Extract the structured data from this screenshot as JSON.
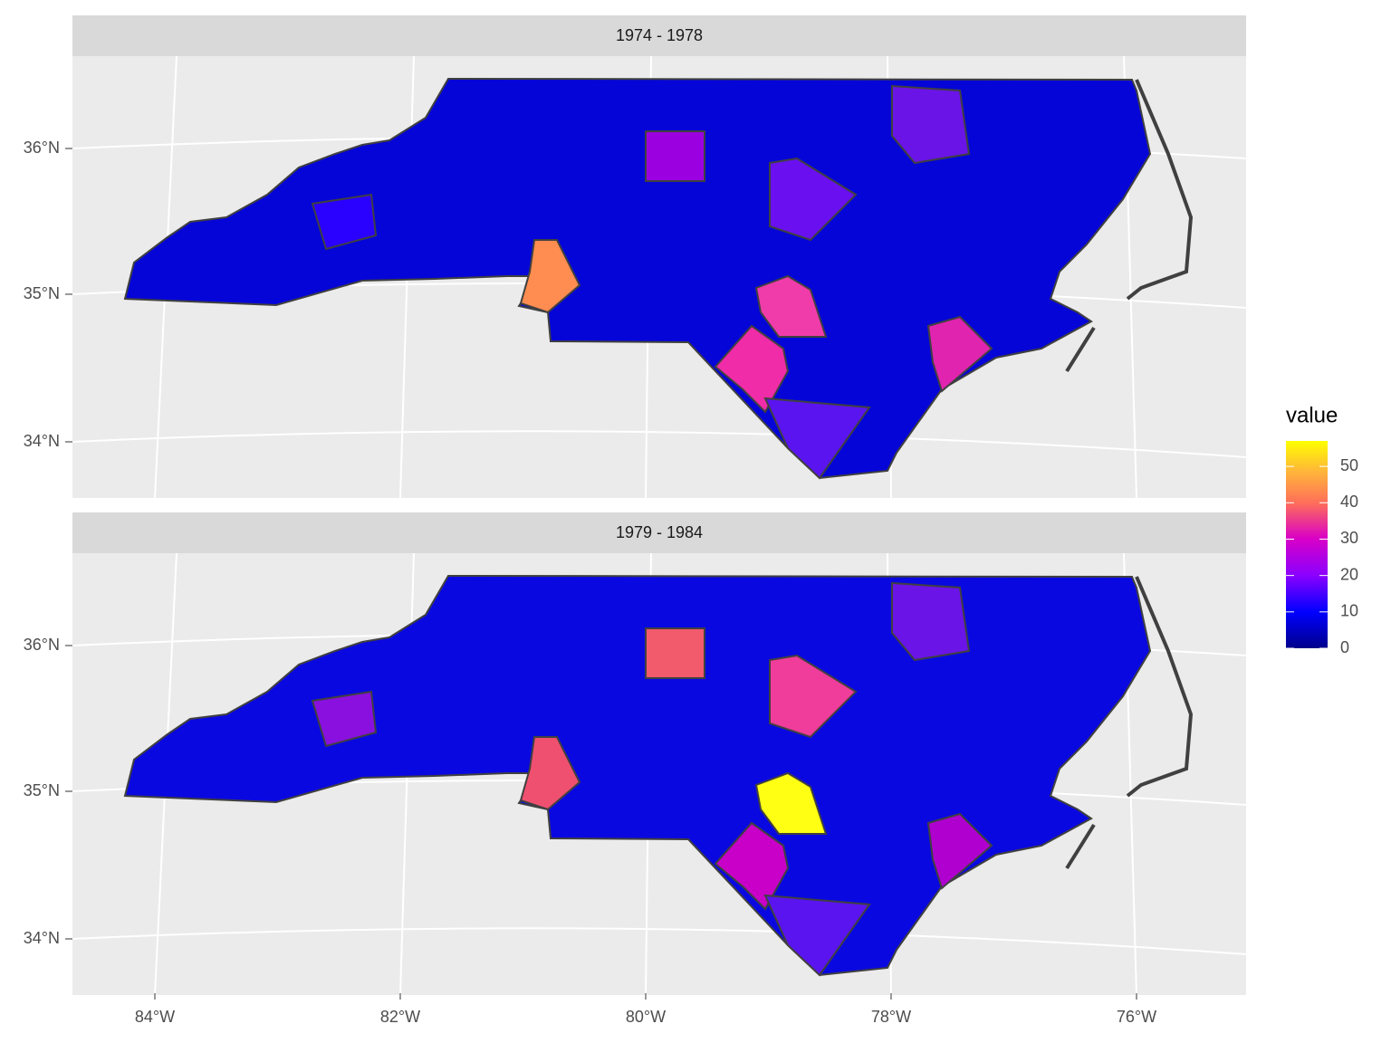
{
  "panels": [
    {
      "title": "1974 - 1978"
    },
    {
      "title": "1979 - 1984"
    }
  ],
  "y_axis_labels": [
    "36°N",
    "35°N",
    "34°N"
  ],
  "x_axis_labels": [
    "84°W",
    "82°W",
    "80°W",
    "78°W",
    "76°W"
  ],
  "legend": {
    "title": "value",
    "limits": [
      0,
      57
    ],
    "ticks": [
      0,
      10,
      20,
      30,
      40,
      50
    ]
  }
}
